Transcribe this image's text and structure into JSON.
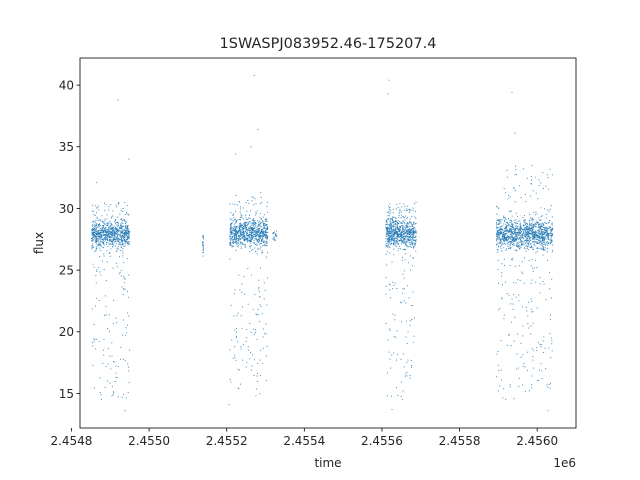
{
  "chart_data": {
    "type": "scatter",
    "title": "1SWASPJ083952.46-175207.4",
    "xlabel": "time",
    "ylabel": "flux",
    "x_offset_label": "1e6",
    "xlim": [
      2454822,
      2456100
    ],
    "ylim": [
      12.2,
      42.2
    ],
    "xticks": [
      2454800,
      2455000,
      2455200,
      2455400,
      2455600,
      2455800,
      2456000
    ],
    "xtick_labels": [
      "2.4548",
      "2.4550",
      "2.4552",
      "2.4554",
      "2.4556",
      "2.4558",
      "2.4560"
    ],
    "yticks": [
      15,
      20,
      25,
      30,
      35,
      40
    ],
    "ytick_labels": [
      "15",
      "20",
      "25",
      "30",
      "35",
      "40"
    ],
    "marker_color": "#1f77b4",
    "grid": false,
    "legend": "none",
    "series": [
      {
        "segments": [
          {
            "x_start": 2454852,
            "x_end": 2454950,
            "baseline": 27.9,
            "scatter": 0.55,
            "low": 14.5,
            "high": 30.5,
            "density": 900
          },
          {
            "x_start": 2455138,
            "x_end": 2455140,
            "baseline": 27.0,
            "scatter": 0.9,
            "low": 26.0,
            "high": 28.0,
            "density": 25
          },
          {
            "x_start": 2455208,
            "x_end": 2455306,
            "baseline": 28.0,
            "scatter": 0.55,
            "low": 14.8,
            "high": 31.5,
            "density": 900
          },
          {
            "x_start": 2455318,
            "x_end": 2455330,
            "baseline": 27.8,
            "scatter": 0.3,
            "low": 27.4,
            "high": 28.2,
            "density": 20
          },
          {
            "x_start": 2455610,
            "x_end": 2455688,
            "baseline": 28.0,
            "scatter": 0.6,
            "low": 14.5,
            "high": 30.5,
            "density": 800
          },
          {
            "x_start": 2455895,
            "x_end": 2456040,
            "baseline": 27.9,
            "scatter": 0.6,
            "low": 14.5,
            "high": 33.5,
            "density": 1300
          }
        ],
        "outliers": [
          {
            "x": 2454920,
            "y": 38.8
          },
          {
            "x": 2454865,
            "y": 32.1
          },
          {
            "x": 2455271,
            "y": 40.8
          },
          {
            "x": 2455281,
            "y": 36.4
          },
          {
            "x": 2455223,
            "y": 34.4
          },
          {
            "x": 2455263,
            "y": 35.0
          },
          {
            "x": 2455618,
            "y": 40.4
          },
          {
            "x": 2455616,
            "y": 39.3
          },
          {
            "x": 2455935,
            "y": 39.4
          },
          {
            "x": 2455943,
            "y": 36.1
          },
          {
            "x": 2454948,
            "y": 34.0
          },
          {
            "x": 2454938,
            "y": 13.6
          },
          {
            "x": 2455206,
            "y": 14.1
          },
          {
            "x": 2455626,
            "y": 13.7
          },
          {
            "x": 2456028,
            "y": 13.6
          }
        ]
      }
    ]
  }
}
